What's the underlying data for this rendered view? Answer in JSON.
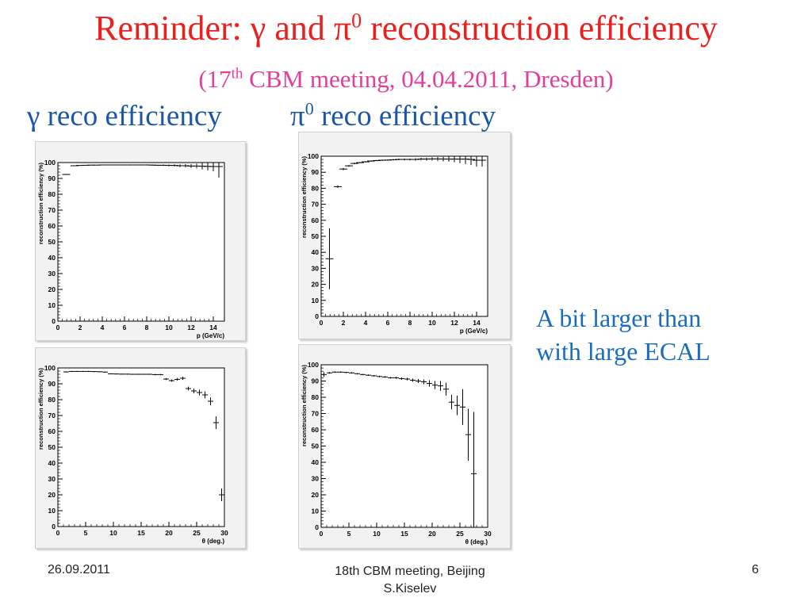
{
  "title": {
    "prefix": "Reminder: γ and π",
    "sup": "0",
    "suffix": " reconstruction efficiency"
  },
  "subtitle": {
    "prefix": "(17",
    "sup": "th",
    "suffix": " CBM meeting, 04.04.2011, Dresden)"
  },
  "column_headings": {
    "gamma": "γ reco efficiency",
    "pi0_base": "π",
    "pi0_sup": "0",
    "pi0_suffix": " reco efficiency"
  },
  "note": {
    "line1": "A bit larger than",
    "line2": "with large ECAL"
  },
  "footer": {
    "date": "26.09.2011",
    "meeting": "18th CBM  meeting, Beijing",
    "author": "S.Kiselev",
    "page": "6"
  },
  "chart_data": [
    {
      "type": "scatter",
      "title": "",
      "xlabel": "p (GeV/c)",
      "ylabel": "reconstruction efficiency (%)",
      "xlim": [
        0,
        15
      ],
      "ylim": [
        0,
        100
      ],
      "xticks": [
        "0",
        "2",
        "4",
        "6",
        "8",
        "10",
        "12",
        "14"
      ],
      "yticks": [
        "0",
        "10",
        "20",
        "30",
        "40",
        "50",
        "60",
        "70",
        "80",
        "90",
        "100"
      ],
      "x": [
        0.75,
        1.5,
        2,
        2.5,
        3,
        3.5,
        4,
        4.5,
        5,
        5.5,
        6,
        6.5,
        7,
        7.5,
        8,
        8.5,
        9,
        9.5,
        10,
        10.5,
        11,
        11.5,
        12,
        12.5,
        13,
        13.5,
        14,
        14.5
      ],
      "y": [
        92.5,
        98,
        98.2,
        98.3,
        98.4,
        98.4,
        98.5,
        98.5,
        98.5,
        98.5,
        98.5,
        98.5,
        98.5,
        98.5,
        98.5,
        98.4,
        98.3,
        98.3,
        98.2,
        98.2,
        98,
        98,
        97.8,
        97.8,
        97.7,
        97.6,
        97.5,
        97.5
      ],
      "yerr": [
        0.3,
        0.2,
        0.2,
        0.2,
        0.2,
        0.2,
        0.2,
        0.2,
        0.2,
        0.2,
        0.3,
        0.3,
        0.3,
        0.3,
        0.3,
        0.4,
        0.4,
        0.5,
        0.6,
        0.7,
        0.9,
        1,
        1.2,
        1.5,
        2,
        2.5,
        3,
        7
      ],
      "grid": false
    },
    {
      "type": "scatter",
      "title": "",
      "xlabel": "p (GeV/c)",
      "ylabel": "reconstruction efficiency (%)",
      "xlim": [
        0,
        15
      ],
      "ylim": [
        0,
        100
      ],
      "xticks": [
        "0",
        "2",
        "4",
        "6",
        "8",
        "10",
        "12",
        "14"
      ],
      "yticks": [
        "0",
        "10",
        "20",
        "30",
        "40",
        "50",
        "60",
        "70",
        "80",
        "90",
        "100"
      ],
      "x": [
        0.75,
        1.5,
        2,
        2.5,
        3,
        3.5,
        4,
        4.5,
        5,
        5.5,
        6,
        6.5,
        7,
        7.5,
        8,
        8.5,
        9,
        9.5,
        10,
        10.5,
        11,
        11.5,
        12,
        12.5,
        13,
        13.5,
        14,
        14.5
      ],
      "y": [
        36,
        81,
        92,
        94,
        95.5,
        96,
        96.5,
        97,
        97.3,
        97.5,
        97.6,
        97.8,
        98,
        98,
        98,
        98,
        98.2,
        98.2,
        98.3,
        98.3,
        98.2,
        98.2,
        98.2,
        98.2,
        98.2,
        98,
        97.5,
        97.5
      ],
      "yerr": [
        19,
        0.8,
        0.7,
        0.5,
        0.5,
        0.4,
        0.4,
        0.4,
        0.4,
        0.4,
        0.4,
        0.5,
        0.5,
        0.6,
        0.6,
        0.7,
        0.8,
        0.9,
        1,
        1.2,
        1.4,
        1.6,
        2,
        2.5,
        3,
        3.5,
        4,
        4
      ],
      "grid": false
    },
    {
      "type": "scatter",
      "title": "",
      "xlabel": "θ (deg.)",
      "ylabel": "reconstruction efficiency (%)",
      "xlim": [
        0,
        30
      ],
      "ylim": [
        0,
        100
      ],
      "xticks": [
        "0",
        "5",
        "10",
        "15",
        "20",
        "25",
        "30"
      ],
      "yticks": [
        "0",
        "10",
        "20",
        "30",
        "40",
        "50",
        "60",
        "70",
        "80",
        "90",
        "100"
      ],
      "x": [
        1.5,
        2.5,
        3.5,
        4.5,
        5.5,
        6.5,
        7.5,
        8.5,
        9.5,
        10.5,
        11.5,
        12.5,
        13.5,
        14.5,
        15.5,
        16.5,
        17.5,
        18.5,
        19.5,
        20.5,
        21.5,
        22.5,
        23.5,
        24.5,
        25.5,
        26.5,
        27.5,
        28.5,
        29.5
      ],
      "y": [
        97.5,
        97.8,
        97.8,
        97.8,
        97.8,
        97.7,
        97.6,
        97.4,
        96.3,
        96.2,
        96.1,
        96.1,
        96,
        96,
        96,
        96,
        95.8,
        95.8,
        93,
        92,
        92.8,
        93.5,
        87,
        85.5,
        84.5,
        83,
        79,
        65.5,
        20
      ],
      "yerr": [
        0.3,
        0.3,
        0.3,
        0.3,
        0.3,
        0.3,
        0.3,
        0.3,
        0.3,
        0.3,
        0.3,
        0.3,
        0.3,
        0.3,
        0.3,
        0.3,
        0.4,
        0.4,
        0.6,
        0.7,
        0.8,
        1,
        1.2,
        1.5,
        1.8,
        2.2,
        2.5,
        4,
        4
      ],
      "grid": false
    },
    {
      "type": "scatter",
      "title": "",
      "xlabel": "θ (deg.)",
      "ylabel": "reconstruction efficiency (%)",
      "xlim": [
        0,
        30
      ],
      "ylim": [
        0,
        100
      ],
      "xticks": [
        "0",
        "5",
        "10",
        "15",
        "20",
        "25",
        "30"
      ],
      "yticks": [
        "0",
        "10",
        "20",
        "30",
        "40",
        "50",
        "60",
        "70",
        "80",
        "90",
        "100"
      ],
      "x": [
        0.5,
        1.5,
        2.5,
        3.5,
        4.5,
        5.5,
        6.5,
        7.5,
        8.5,
        9.5,
        10.5,
        11.5,
        12.5,
        13.5,
        14.5,
        15.5,
        16.5,
        17.5,
        18.5,
        19.5,
        20.5,
        21.5,
        22.5,
        23.5,
        24.5,
        25.5,
        26.5,
        27.5
      ],
      "y": [
        94,
        95,
        95.5,
        95.5,
        95.3,
        95,
        94.5,
        94,
        93.6,
        93.2,
        92.8,
        92.5,
        92,
        92,
        91.5,
        91.2,
        90.5,
        90,
        89.5,
        88.5,
        87.5,
        87,
        85,
        77,
        75,
        74,
        57,
        33
      ],
      "yerr": [
        1.5,
        0.5,
        0.4,
        0.4,
        0.4,
        0.4,
        0.4,
        0.4,
        0.4,
        0.4,
        0.5,
        0.5,
        0.5,
        0.6,
        0.7,
        0.8,
        1,
        1.2,
        1.5,
        2,
        2.5,
        3,
        4,
        4.5,
        6,
        11,
        16,
        38
      ],
      "grid": false
    }
  ]
}
